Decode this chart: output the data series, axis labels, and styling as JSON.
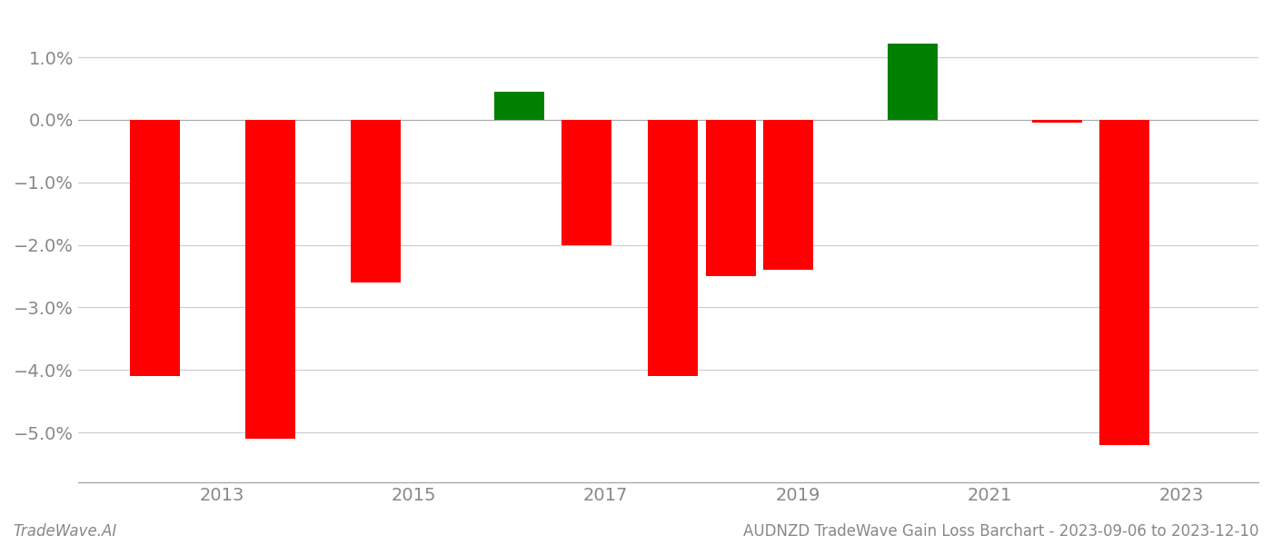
{
  "years": [
    2012.3,
    2013.5,
    2014.6,
    2016.1,
    2016.8,
    2017.7,
    2018.3,
    2018.9,
    2020.2,
    2021.7,
    2022.4
  ],
  "values": [
    -0.041,
    -0.051,
    -0.026,
    0.0045,
    -0.02,
    -0.041,
    -0.025,
    -0.024,
    0.0122,
    -0.0005,
    -0.052
  ],
  "colors": [
    "#ff0000",
    "#ff0000",
    "#ff0000",
    "#008000",
    "#ff0000",
    "#ff0000",
    "#ff0000",
    "#ff0000",
    "#008000",
    "#ff0000",
    "#ff0000"
  ],
  "bar_width": 0.52,
  "xlim": [
    2011.5,
    2023.8
  ],
  "ylim": [
    -0.058,
    0.017
  ],
  "xticks": [
    2013,
    2015,
    2017,
    2019,
    2021,
    2023
  ],
  "yticks": [
    -0.05,
    -0.04,
    -0.03,
    -0.02,
    -0.01,
    0.0,
    0.01
  ],
  "ytick_labels": [
    "−5.0%",
    "−4.0%",
    "−3.0%",
    "−2.0%",
    "−1.0%",
    "0.0%",
    "1.0%"
  ],
  "background_color": "#ffffff",
  "grid_color": "#cccccc",
  "axis_color": "#aaaaaa",
  "tick_color": "#888888",
  "footer_left": "TradeWave.AI",
  "footer_right": "AUDNZD TradeWave Gain Loss Barchart - 2023-09-06 to 2023-12-10",
  "footer_fontsize": 12,
  "tick_fontsize": 14
}
